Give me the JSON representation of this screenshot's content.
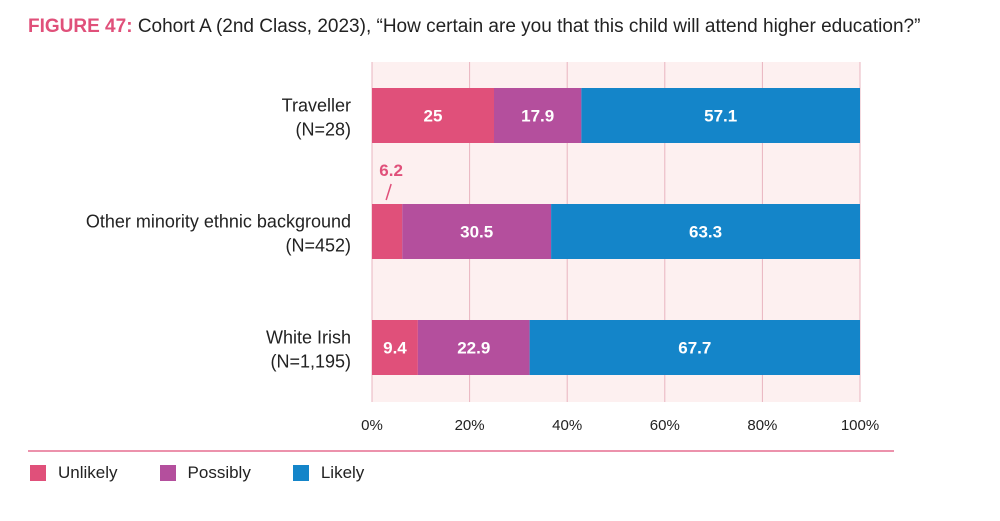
{
  "title": {
    "figure_label": "FIGURE 47:",
    "text": "Cohort A (2nd Class, 2023), “How certain are you that this child will attend higher education?”"
  },
  "colors": {
    "unlikely": "#e0507a",
    "possibly": "#b44f9d",
    "likely": "#1485c9",
    "plot_background": "#fdf0f0",
    "gridline": "#e9b4bf",
    "divider": "#e0507a"
  },
  "chart_data": {
    "type": "bar",
    "orientation": "horizontal",
    "stacked": true,
    "categories": [
      [
        "Traveller",
        "(N=28)"
      ],
      [
        "Other minority ethnic background",
        "(N=452)"
      ],
      [
        "White Irish",
        "(N=1,195)"
      ]
    ],
    "series": [
      {
        "name": "Unlikely",
        "key": "unlikely",
        "values": [
          25,
          6.2,
          9.4
        ],
        "labels": [
          "25",
          "6.2",
          "9.4"
        ]
      },
      {
        "name": "Possibly",
        "key": "possibly",
        "values": [
          17.9,
          30.5,
          22.9
        ],
        "labels": [
          "17.9",
          "30.5",
          "22.9"
        ]
      },
      {
        "name": "Likely",
        "key": "likely",
        "values": [
          57.1,
          63.3,
          67.7
        ],
        "labels": [
          "57.1",
          "63.3",
          "67.7"
        ]
      }
    ],
    "xlim": [
      0,
      100
    ],
    "xticks": [
      0,
      20,
      40,
      60,
      80,
      100
    ],
    "xtick_labels": [
      "0%",
      "20%",
      "40%",
      "60%",
      "80%",
      "100%"
    ],
    "grid": true,
    "legend_position": "bottom-left"
  }
}
